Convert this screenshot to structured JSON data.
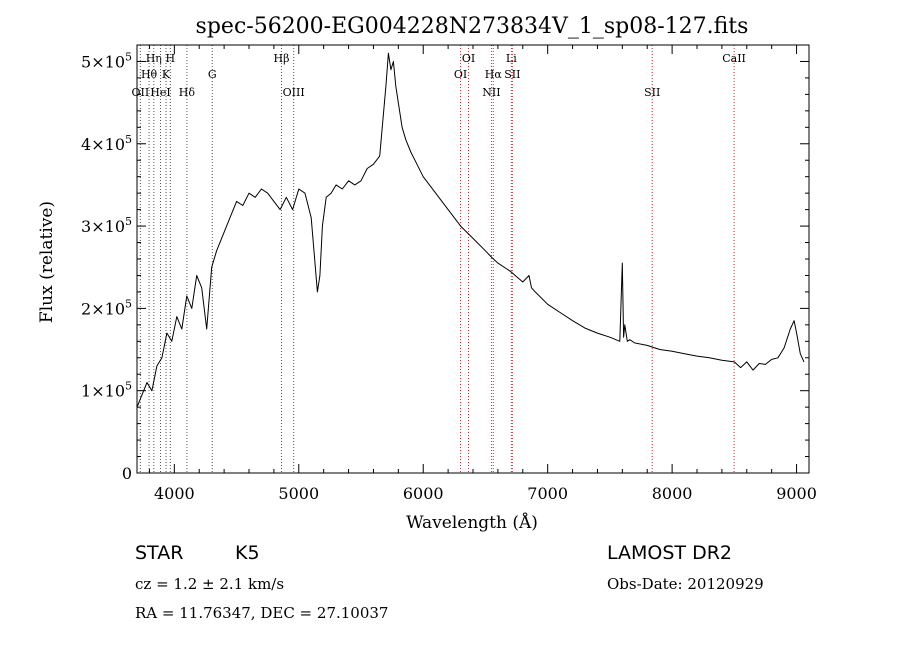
{
  "chart_data": {
    "type": "line",
    "title": "spec-56200-EG004228N273834V_1_sp08-127.fits",
    "xlabel": "Wavelength (Å)",
    "ylabel": "Flux (relative)",
    "xlim": [
      3700,
      9100
    ],
    "ylim": [
      0,
      520000
    ],
    "xticks": [
      4000,
      5000,
      6000,
      7000,
      8000,
      9000
    ],
    "yticks": [
      {
        "value": 0,
        "label": "0"
      },
      {
        "value": 100000,
        "label": "1×10^5"
      },
      {
        "value": 200000,
        "label": "2×10^5"
      },
      {
        "value": 300000,
        "label": "3×10^5"
      },
      {
        "value": 400000,
        "label": "4×10^5"
      },
      {
        "value": 500000,
        "label": "5×10^5"
      }
    ],
    "grid": false,
    "series": [
      {
        "x": [
          3700,
          3740,
          3780,
          3820,
          3860,
          3900,
          3940,
          3980,
          4020,
          4060,
          4100,
          4140,
          4180,
          4220,
          4260,
          4300,
          4340,
          4380,
          4420,
          4460,
          4500,
          4550,
          4600,
          4650,
          4700,
          4750,
          4800,
          4850,
          4900,
          4950,
          5000,
          5050,
          5100,
          5150,
          5170,
          5190,
          5220,
          5260,
          5300,
          5350,
          5400,
          5450,
          5500,
          5550,
          5600,
          5650,
          5700,
          5720,
          5740,
          5760,
          5780,
          5800,
          5830,
          5860,
          5900,
          5950,
          6000,
          6100,
          6200,
          6300,
          6400,
          6500,
          6550,
          6600,
          6700,
          6800,
          6850,
          6870,
          6900,
          7000,
          7100,
          7200,
          7300,
          7400,
          7500,
          7580,
          7600,
          7610,
          7620,
          7640,
          7660,
          7700,
          7800,
          7900,
          8000,
          8100,
          8200,
          8300,
          8400,
          8500,
          8550,
          8600,
          8650,
          8700,
          8750,
          8800,
          8850,
          8900,
          8950,
          8980,
          9000,
          9030,
          9060
        ],
        "y": [
          80000,
          95000,
          110000,
          100000,
          130000,
          140000,
          170000,
          160000,
          190000,
          175000,
          215000,
          200000,
          240000,
          225000,
          175000,
          250000,
          270000,
          285000,
          300000,
          315000,
          330000,
          325000,
          340000,
          335000,
          345000,
          340000,
          330000,
          320000,
          335000,
          320000,
          345000,
          340000,
          310000,
          220000,
          240000,
          300000,
          335000,
          340000,
          350000,
          345000,
          355000,
          350000,
          355000,
          370000,
          375000,
          385000,
          470000,
          510000,
          490000,
          500000,
          470000,
          450000,
          420000,
          405000,
          390000,
          375000,
          360000,
          340000,
          320000,
          300000,
          285000,
          270000,
          262000,
          255000,
          245000,
          232000,
          240000,
          225000,
          220000,
          205000,
          195000,
          185000,
          176000,
          170000,
          165000,
          160000,
          255000,
          165000,
          180000,
          160000,
          162000,
          158000,
          155000,
          150000,
          148000,
          145000,
          142000,
          140000,
          137000,
          135000,
          128000,
          135000,
          125000,
          133000,
          132000,
          138000,
          140000,
          152000,
          175000,
          185000,
          170000,
          145000,
          135000
        ]
      }
    ],
    "lines": [
      {
        "label": "Hη",
        "x": 3835,
        "row": 0
      },
      {
        "label": "H",
        "x": 3968,
        "row": 0
      },
      {
        "label": "Hθ",
        "x": 3797,
        "row": 1
      },
      {
        "label": "K",
        "x": 3933,
        "row": 1
      },
      {
        "label": "G",
        "x": 4305,
        "row": 1
      },
      {
        "label": "OII",
        "x": 3727,
        "row": 2
      },
      {
        "label": "HeI",
        "x": 3889,
        "row": 2
      },
      {
        "label": "Hδ",
        "x": 4101,
        "row": 2
      },
      {
        "label": "Hβ",
        "x": 4861,
        "row": 0
      },
      {
        "label": "OIII",
        "x": 4959,
        "row": 2
      },
      {
        "label": "OI",
        "x": 6364,
        "row": 0
      },
      {
        "label": "OI",
        "x": 6300,
        "row": 1
      },
      {
        "label": "Hα",
        "x": 6563,
        "row": 1
      },
      {
        "label": "NII",
        "x": 6548,
        "row": 2
      },
      {
        "label": "Li",
        "x": 6708,
        "row": 0
      },
      {
        "label": "SII",
        "x": 6716,
        "row": 1
      },
      {
        "label": "SII",
        "x": 7840,
        "row": 2
      },
      {
        "label": "CaII",
        "x": 8498,
        "row": 0
      }
    ]
  },
  "info": {
    "class": "STAR",
    "subclass": "K5",
    "survey": "LAMOST DR2",
    "cz": "cz = 1.2 ± 2.1 km/s",
    "obs_date": "Obs-Date: 20120929",
    "coords": "RA =  11.76347, DEC =  27.10037"
  }
}
